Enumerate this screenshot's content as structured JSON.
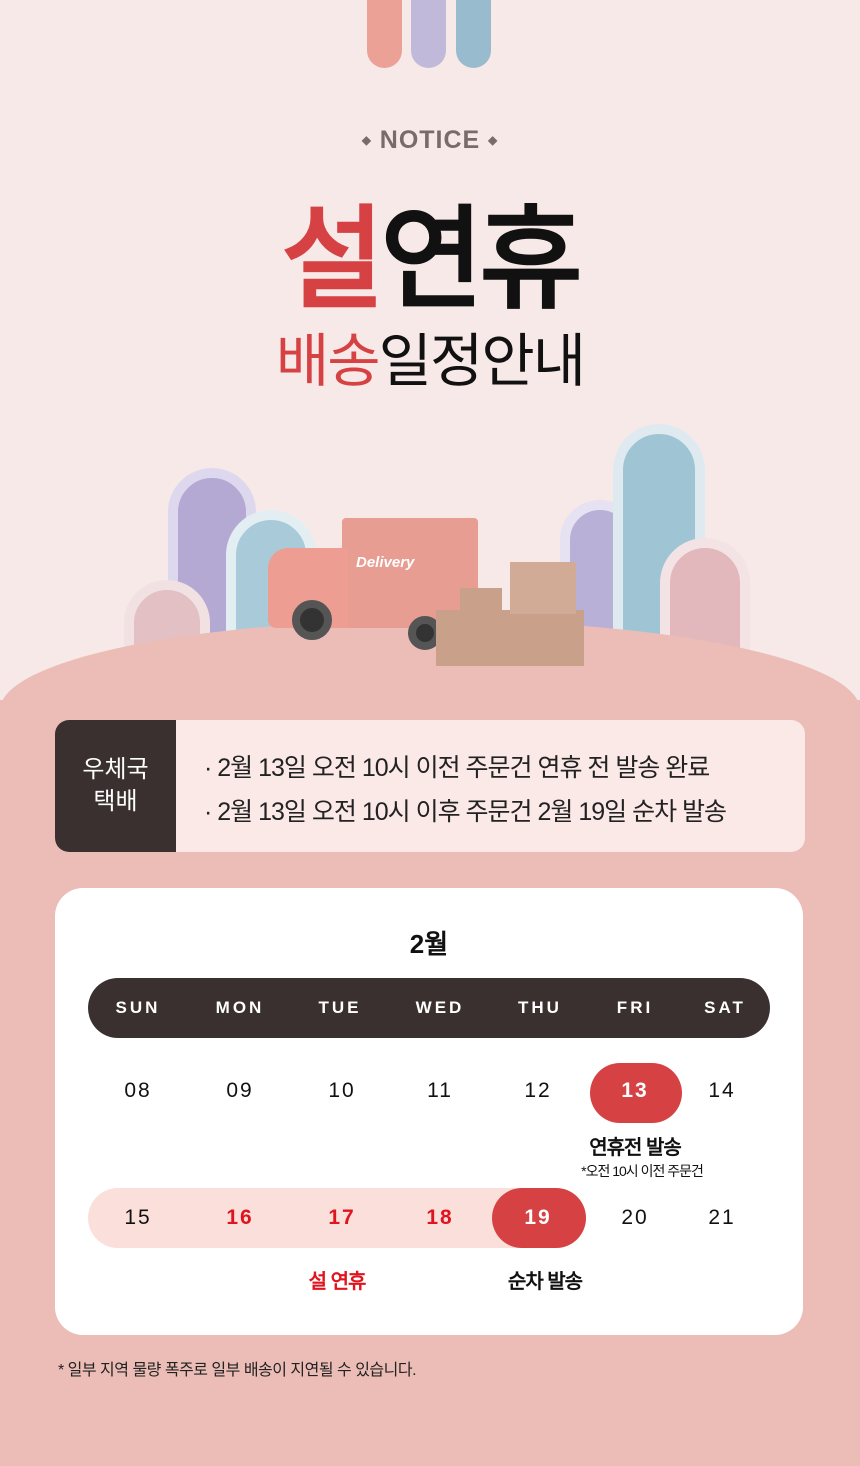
{
  "header": {
    "notice": "⬩ NOTICE ⬩",
    "title_red": "설",
    "title_black": "연휴",
    "subtitle_red": "배송",
    "subtitle_black": "일정안내"
  },
  "illustration": {
    "truck_text": "Delivery"
  },
  "info": {
    "label_line1": "우체국",
    "label_line2": "택배",
    "lines": [
      "· 2월 13일 오전 10시 이전 주문건 연휴 전 발송 완료",
      "· 2월 13일 오전 10시 이후 주문건 2월 19일 순차 발송"
    ]
  },
  "calendar": {
    "month": "2월",
    "weekdays": [
      "SUN",
      "MON",
      "TUE",
      "WED",
      "THU",
      "FRI",
      "SAT"
    ],
    "week1": [
      "08",
      "09",
      "10",
      "11",
      "12",
      "13",
      "14"
    ],
    "week2": [
      "15",
      "16",
      "17",
      "18",
      "19",
      "20",
      "21"
    ],
    "label_13": "연휴전 발송",
    "note_13": "*오전 10시 이전 주문건",
    "label_holiday": "설 연휴",
    "label_19": "순차 발송"
  },
  "footnote": "* 일부 지역 물량 폭주로 일부 배송이 지연될 수 있습니다.",
  "colors": {
    "accent": "#d64244",
    "dark": "#3a302f",
    "holiday_red": "#e0141e",
    "bg_top": "#f7e9e7",
    "bg_bottom": "#ebbdb6"
  }
}
